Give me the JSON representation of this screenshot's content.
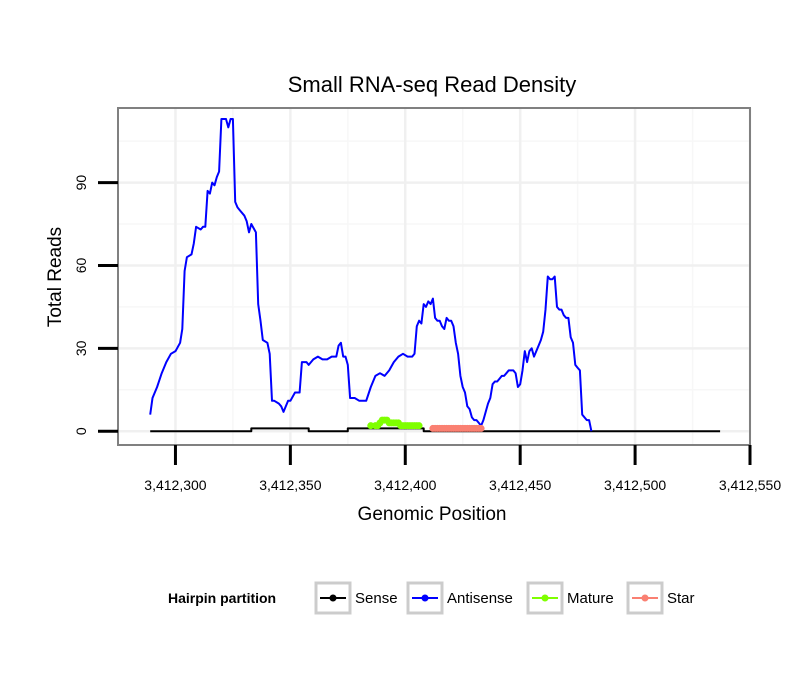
{
  "chart_data": {
    "type": "line",
    "title": "Small RNA-seq Read Density",
    "xlabel": "Genomic Position",
    "ylabel": "Total Reads",
    "xlim": [
      3412275,
      3412550
    ],
    "ylim": [
      -5,
      117
    ],
    "xticks": [
      3412300,
      3412350,
      3412400,
      3412450,
      3412500,
      3412550
    ],
    "xtick_labels": [
      "3,412,300",
      "3,412,350",
      "3,412,400",
      "3,412,450",
      "3,412,500",
      "3,412,550"
    ],
    "yticks": [
      0,
      30,
      60,
      90
    ],
    "ytick_labels": [
      "0",
      "30",
      "60",
      "90"
    ],
    "grid": true,
    "legend": {
      "title": "Hairpin partition",
      "position": "bottom",
      "entries": [
        "Sense",
        "Antisense",
        "Mature",
        "Star"
      ]
    },
    "series": [
      {
        "name": "Sense",
        "color": "#000000",
        "points": [
          [
            3412289,
            0
          ],
          [
            3412333,
            0
          ],
          [
            3412333,
            1
          ],
          [
            3412358,
            1
          ],
          [
            3412358,
            0
          ],
          [
            3412375,
            0
          ],
          [
            3412375,
            1
          ],
          [
            3412408,
            1
          ],
          [
            3412408,
            0
          ],
          [
            3412537,
            0
          ]
        ]
      },
      {
        "name": "Antisense",
        "color": "#0000ff",
        "points": [
          [
            3412289,
            6
          ],
          [
            3412290,
            12
          ],
          [
            3412292,
            16
          ],
          [
            3412294,
            21
          ],
          [
            3412296,
            25
          ],
          [
            3412298,
            28
          ],
          [
            3412300,
            29
          ],
          [
            3412302,
            32
          ],
          [
            3412303,
            37
          ],
          [
            3412304,
            58
          ],
          [
            3412305,
            63
          ],
          [
            3412307,
            64
          ],
          [
            3412308,
            68
          ],
          [
            3412309,
            74
          ],
          [
            3412311,
            73
          ],
          [
            3412312,
            74
          ],
          [
            3412313,
            74
          ],
          [
            3412314,
            87
          ],
          [
            3412315,
            86
          ],
          [
            3412316,
            90
          ],
          [
            3412317,
            89
          ],
          [
            3412318,
            92
          ],
          [
            3412319,
            94
          ],
          [
            3412320,
            113
          ],
          [
            3412322,
            113
          ],
          [
            3412323,
            110
          ],
          [
            3412324,
            113
          ],
          [
            3412325,
            113
          ],
          [
            3412326,
            83
          ],
          [
            3412327,
            81
          ],
          [
            3412328,
            80
          ],
          [
            3412330,
            78
          ],
          [
            3412331,
            76
          ],
          [
            3412332,
            72
          ],
          [
            3412333,
            75
          ],
          [
            3412335,
            72
          ],
          [
            3412336,
            46
          ],
          [
            3412337,
            40
          ],
          [
            3412338,
            33
          ],
          [
            3412340,
            32
          ],
          [
            3412341,
            28
          ],
          [
            3412342,
            11
          ],
          [
            3412343,
            11
          ],
          [
            3412345,
            10
          ],
          [
            3412346,
            9
          ],
          [
            3412347,
            7
          ],
          [
            3412349,
            11
          ],
          [
            3412350,
            11
          ],
          [
            3412352,
            14
          ],
          [
            3412354,
            14
          ],
          [
            3412355,
            25
          ],
          [
            3412357,
            25
          ],
          [
            3412358,
            24
          ],
          [
            3412360,
            26
          ],
          [
            3412362,
            27
          ],
          [
            3412364,
            26
          ],
          [
            3412366,
            26
          ],
          [
            3412368,
            27
          ],
          [
            3412370,
            27
          ],
          [
            3412371,
            31
          ],
          [
            3412372,
            32
          ],
          [
            3412373,
            27
          ],
          [
            3412374,
            27
          ],
          [
            3412375,
            24
          ],
          [
            3412376,
            12
          ],
          [
            3412378,
            12
          ],
          [
            3412380,
            11
          ],
          [
            3412383,
            11
          ],
          [
            3412385,
            16
          ],
          [
            3412387,
            20
          ],
          [
            3412389,
            21
          ],
          [
            3412391,
            20
          ],
          [
            3412393,
            22
          ],
          [
            3412395,
            25
          ],
          [
            3412397,
            27
          ],
          [
            3412399,
            28
          ],
          [
            3412401,
            27
          ],
          [
            3412403,
            27
          ],
          [
            3412404,
            28
          ],
          [
            3412405,
            38
          ],
          [
            3412406,
            40
          ],
          [
            3412407,
            39
          ],
          [
            3412408,
            46
          ],
          [
            3412409,
            45
          ],
          [
            3412410,
            47
          ],
          [
            3412411,
            46
          ],
          [
            3412412,
            48
          ],
          [
            3412413,
            41
          ],
          [
            3412414,
            40
          ],
          [
            3412415,
            40
          ],
          [
            3412416,
            38
          ],
          [
            3412417,
            37
          ],
          [
            3412418,
            41
          ],
          [
            3412419,
            40
          ],
          [
            3412420,
            40
          ],
          [
            3412421,
            38
          ],
          [
            3412422,
            32
          ],
          [
            3412423,
            28
          ],
          [
            3412424,
            20
          ],
          [
            3412425,
            16
          ],
          [
            3412426,
            14
          ],
          [
            3412427,
            9
          ],
          [
            3412428,
            8
          ],
          [
            3412429,
            5
          ],
          [
            3412430,
            4
          ],
          [
            3412431,
            4
          ],
          [
            3412432,
            3
          ],
          [
            3412433,
            2
          ],
          [
            3412434,
            4
          ],
          [
            3412435,
            7
          ],
          [
            3412436,
            10
          ],
          [
            3412437,
            12
          ],
          [
            3412438,
            17
          ],
          [
            3412439,
            18
          ],
          [
            3412440,
            18
          ],
          [
            3412441,
            19
          ],
          [
            3412442,
            20
          ],
          [
            3412443,
            20
          ],
          [
            3412444,
            21
          ],
          [
            3412445,
            22
          ],
          [
            3412446,
            22
          ],
          [
            3412447,
            22
          ],
          [
            3412448,
            21
          ],
          [
            3412449,
            16
          ],
          [
            3412450,
            17
          ],
          [
            3412451,
            22
          ],
          [
            3412452,
            29
          ],
          [
            3412453,
            25
          ],
          [
            3412454,
            29
          ],
          [
            3412455,
            30
          ],
          [
            3412456,
            27
          ],
          [
            3412457,
            29
          ],
          [
            3412458,
            31
          ],
          [
            3412459,
            33
          ],
          [
            3412460,
            36
          ],
          [
            3412461,
            44
          ],
          [
            3412462,
            56
          ],
          [
            3412463,
            55
          ],
          [
            3412464,
            55
          ],
          [
            3412465,
            56
          ],
          [
            3412466,
            45
          ],
          [
            3412467,
            44
          ],
          [
            3412468,
            44
          ],
          [
            3412469,
            42
          ],
          [
            3412470,
            41
          ],
          [
            3412471,
            41
          ],
          [
            3412472,
            34
          ],
          [
            3412473,
            32
          ],
          [
            3412474,
            24
          ],
          [
            3412475,
            23
          ],
          [
            3412476,
            22
          ],
          [
            3412477,
            6
          ],
          [
            3412478,
            5
          ],
          [
            3412479,
            4
          ],
          [
            3412480,
            4
          ],
          [
            3412481,
            0
          ]
        ]
      },
      {
        "name": "Mature",
        "color": "#7fff00",
        "points": [
          [
            3412385,
            2
          ],
          [
            3412387,
            2
          ],
          [
            3412388,
            2
          ],
          [
            3412389,
            3
          ],
          [
            3412390,
            4
          ],
          [
            3412391,
            4
          ],
          [
            3412392,
            4
          ],
          [
            3412393,
            3
          ],
          [
            3412394,
            3
          ],
          [
            3412395,
            3
          ],
          [
            3412396,
            3
          ],
          [
            3412397,
            3
          ],
          [
            3412398,
            2
          ],
          [
            3412399,
            2
          ],
          [
            3412400,
            2
          ],
          [
            3412401,
            2
          ],
          [
            3412402,
            2
          ],
          [
            3412403,
            2
          ],
          [
            3412404,
            2
          ],
          [
            3412405,
            2
          ],
          [
            3412406,
            2
          ]
        ]
      },
      {
        "name": "Star",
        "color": "#fa8072",
        "points": [
          [
            3412412,
            1
          ],
          [
            3412413,
            1
          ],
          [
            3412414,
            1
          ],
          [
            3412415,
            1
          ],
          [
            3412416,
            1
          ],
          [
            3412417,
            1
          ],
          [
            3412418,
            1
          ],
          [
            3412419,
            1
          ],
          [
            3412420,
            1
          ],
          [
            3412421,
            1
          ],
          [
            3412422,
            1
          ],
          [
            3412423,
            1
          ],
          [
            3412424,
            1
          ],
          [
            3412425,
            1
          ],
          [
            3412426,
            1
          ],
          [
            3412427,
            1
          ],
          [
            3412428,
            1
          ],
          [
            3412429,
            1
          ],
          [
            3412430,
            1
          ],
          [
            3412431,
            1
          ],
          [
            3412432,
            1
          ],
          [
            3412433,
            1
          ]
        ]
      }
    ]
  }
}
